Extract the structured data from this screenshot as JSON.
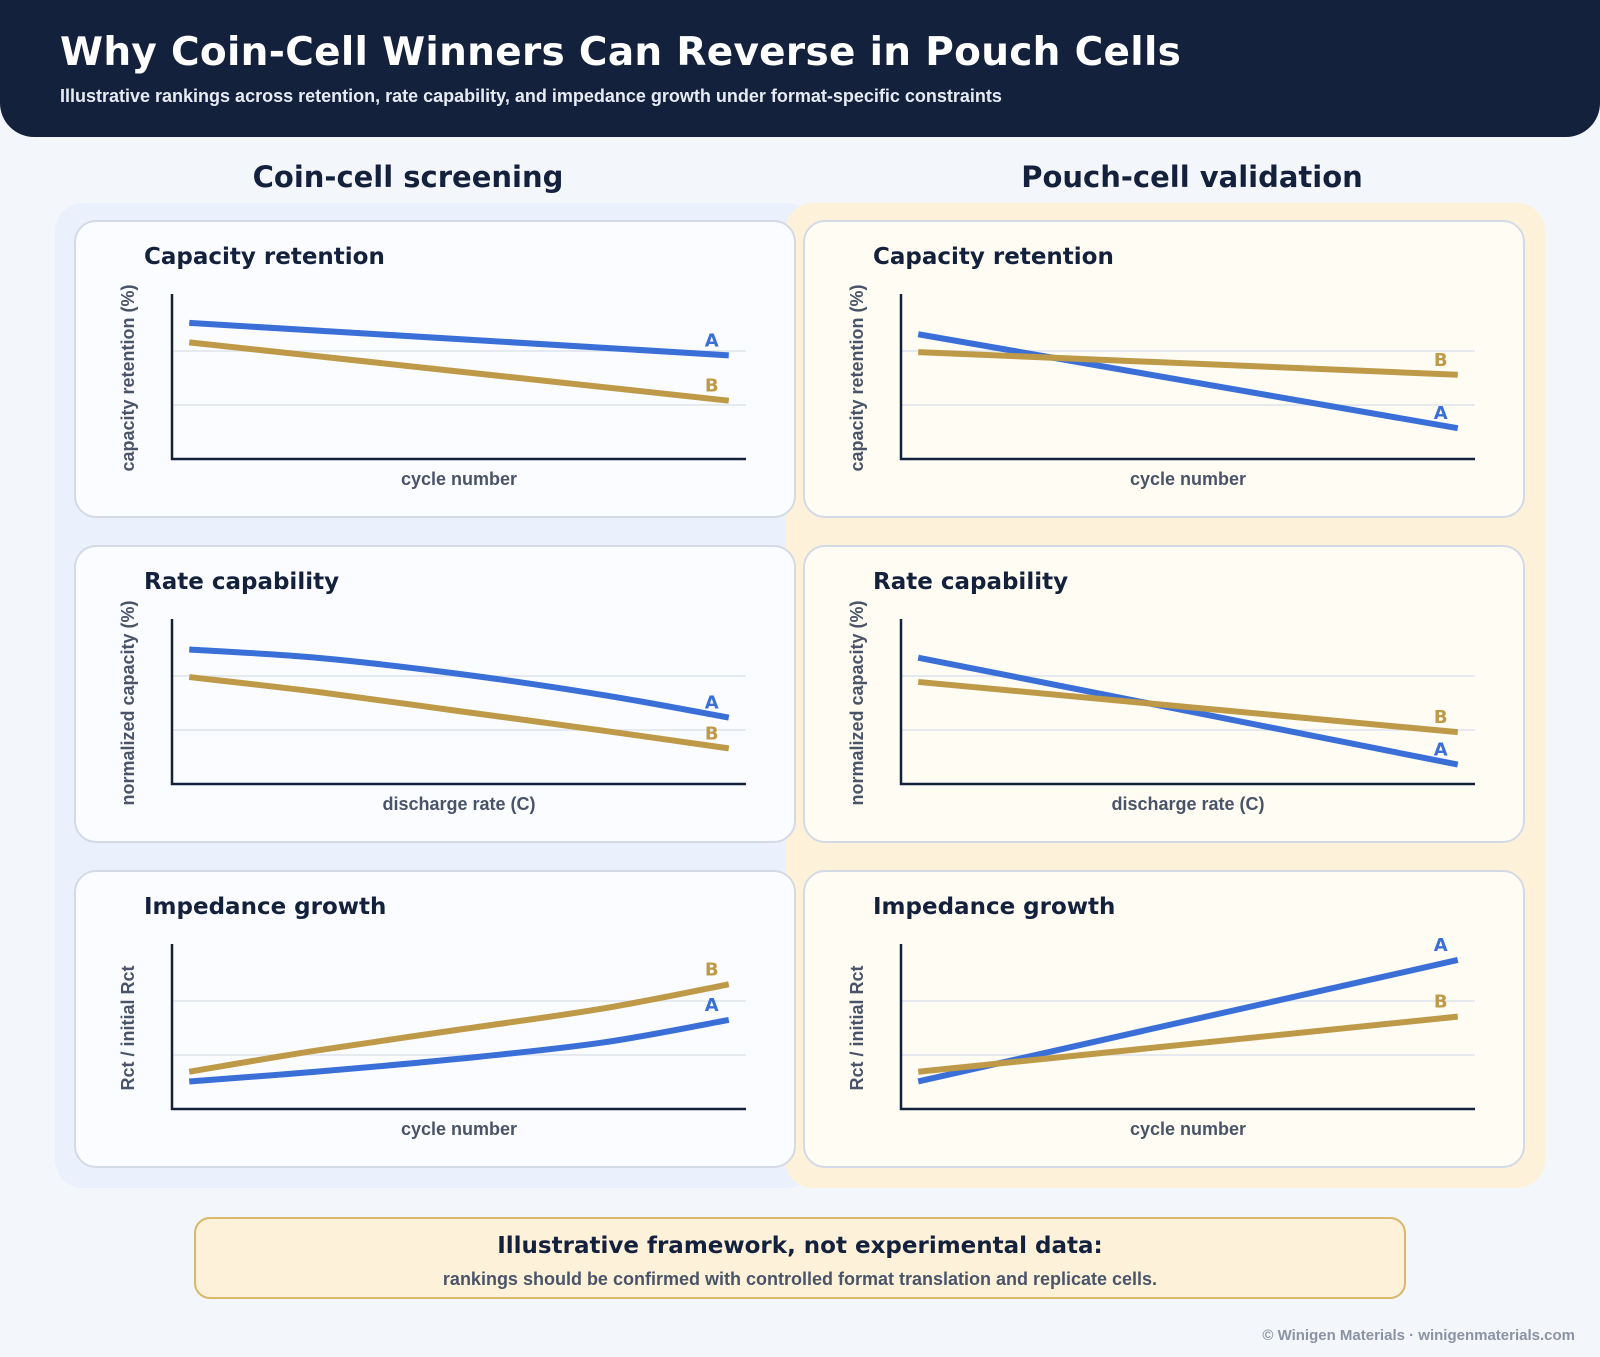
{
  "header": {
    "title": "Why Coin-Cell Winners Can Reverse in Pouch Cells",
    "subtitle": "Illustrative rankings across retention, rate capability, and impedance growth under format-specific constraints"
  },
  "columns": {
    "coin": "Coin-cell screening",
    "pouch": "Pouch-cell validation"
  },
  "colors": {
    "series_A": "#3a6fd8",
    "series_B": "#be9a48",
    "axis": "#14213d",
    "grid": "#dde3ec"
  },
  "chart_data": [
    {
      "type": "line",
      "column": "coin",
      "title": "Capacity retention",
      "xlabel": "cycle number",
      "ylabel": "capacity retention (%)",
      "xlim": [
        0,
        1
      ],
      "ylim": [
        0,
        1
      ],
      "grid": "horizontal",
      "series": [
        {
          "name": "A",
          "x": [
            0.03,
            0.97
          ],
          "y": [
            0.84,
            0.64
          ]
        },
        {
          "name": "B",
          "x": [
            0.03,
            0.97
          ],
          "y": [
            0.72,
            0.36
          ]
        }
      ]
    },
    {
      "type": "line",
      "column": "pouch",
      "title": "Capacity retention",
      "xlabel": "cycle number",
      "ylabel": "capacity retention (%)",
      "xlim": [
        0,
        1
      ],
      "ylim": [
        0,
        1
      ],
      "grid": "horizontal",
      "series": [
        {
          "name": "A",
          "x": [
            0.03,
            0.97
          ],
          "y": [
            0.77,
            0.19
          ]
        },
        {
          "name": "B",
          "x": [
            0.03,
            0.97
          ],
          "y": [
            0.66,
            0.52
          ]
        }
      ]
    },
    {
      "type": "line",
      "column": "coin",
      "title": "Rate capability",
      "xlabel": "discharge rate (C)",
      "ylabel": "normalized capacity (%)",
      "xlim": [
        0,
        1
      ],
      "ylim": [
        0,
        1
      ],
      "grid": "horizontal",
      "series": [
        {
          "name": "A",
          "x": [
            0.03,
            0.25,
            0.5,
            0.75,
            0.97
          ],
          "y": [
            0.83,
            0.78,
            0.68,
            0.55,
            0.41
          ]
        },
        {
          "name": "B",
          "x": [
            0.03,
            0.25,
            0.5,
            0.75,
            0.97
          ],
          "y": [
            0.66,
            0.57,
            0.45,
            0.33,
            0.22
          ]
        }
      ]
    },
    {
      "type": "line",
      "column": "pouch",
      "title": "Rate capability",
      "xlabel": "discharge rate (C)",
      "ylabel": "normalized capacity (%)",
      "xlim": [
        0,
        1
      ],
      "ylim": [
        0,
        1
      ],
      "grid": "horizontal",
      "series": [
        {
          "name": "A",
          "x": [
            0.03,
            0.97
          ],
          "y": [
            0.78,
            0.12
          ]
        },
        {
          "name": "B",
          "x": [
            0.03,
            0.97
          ],
          "y": [
            0.63,
            0.32
          ]
        }
      ]
    },
    {
      "type": "line",
      "column": "coin",
      "title": "Impedance growth",
      "xlabel": "cycle number",
      "ylabel": "Rct / initial Rct",
      "xlim": [
        0,
        1
      ],
      "ylim": [
        0,
        1
      ],
      "grid": "horizontal",
      "series": [
        {
          "name": "A",
          "x": [
            0.03,
            0.25,
            0.5,
            0.75,
            0.97
          ],
          "y": [
            0.17,
            0.23,
            0.31,
            0.41,
            0.55
          ]
        },
        {
          "name": "B",
          "x": [
            0.03,
            0.25,
            0.5,
            0.75,
            0.97
          ],
          "y": [
            0.23,
            0.36,
            0.49,
            0.62,
            0.77
          ]
        }
      ]
    },
    {
      "type": "line",
      "column": "pouch",
      "title": "Impedance growth",
      "xlabel": "cycle number",
      "ylabel": "Rct / initial Rct",
      "xlim": [
        0,
        1
      ],
      "ylim": [
        0,
        1
      ],
      "grid": "horizontal",
      "series": [
        {
          "name": "A",
          "x": [
            0.03,
            0.97
          ],
          "y": [
            0.17,
            0.92
          ]
        },
        {
          "name": "B",
          "x": [
            0.03,
            0.97
          ],
          "y": [
            0.23,
            0.57
          ]
        }
      ]
    }
  ],
  "footer": {
    "title": "Illustrative framework, not experimental data:",
    "text": "rankings should be confirmed with controlled format translation and replicate cells."
  },
  "credit": "© Winigen Materials · winigenmaterials.com"
}
